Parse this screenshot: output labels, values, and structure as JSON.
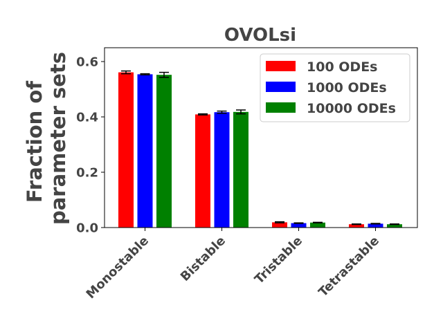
{
  "chart_data": {
    "type": "bar",
    "title": "OVOLsi",
    "xlabel": "",
    "ylabel_lines": [
      "Fraction of",
      "parameter sets"
    ],
    "categories": [
      "Monostable",
      "Bistable",
      "Tristable",
      "Tetrastable"
    ],
    "ylim": [
      0,
      0.65
    ],
    "yticks": [
      "0.0",
      "0.2",
      "0.4",
      "0.6"
    ],
    "grid": false,
    "legend_position": "top-right",
    "series": [
      {
        "name": "100 ODEs",
        "color": "#ff0000",
        "values": [
          0.561,
          0.409,
          0.019,
          0.012
        ],
        "errors": [
          0.005,
          0.002,
          0.002,
          0.001
        ]
      },
      {
        "name": "1000 ODEs",
        "color": "#0000ff",
        "values": [
          0.554,
          0.417,
          0.016,
          0.014
        ],
        "errors": [
          0.002,
          0.004,
          0.001,
          0.001
        ]
      },
      {
        "name": "10000 ODEs",
        "color": "#008000",
        "values": [
          0.552,
          0.418,
          0.018,
          0.012
        ],
        "errors": [
          0.009,
          0.007,
          0.001,
          0.001
        ]
      }
    ]
  }
}
